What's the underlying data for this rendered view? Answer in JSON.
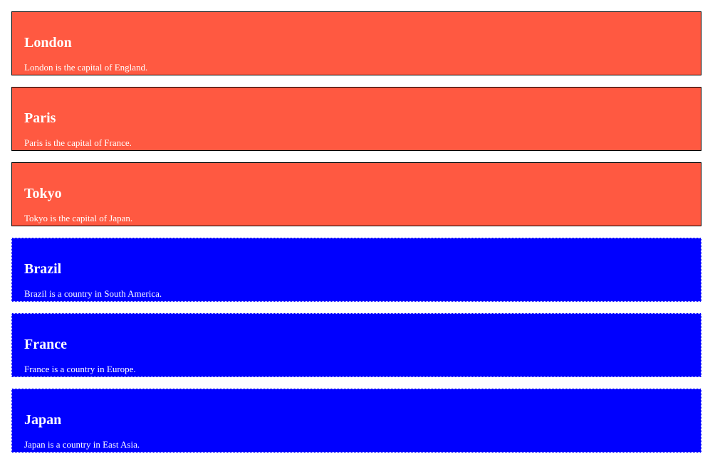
{
  "colors": {
    "city_bg": "#ff5941",
    "country_bg": "#0000ff",
    "text": "#ffffff"
  },
  "cards": [
    {
      "kind": "city",
      "title": "London",
      "description": "London is the capital of England."
    },
    {
      "kind": "city",
      "title": "Paris",
      "description": "Paris is the capital of France."
    },
    {
      "kind": "city",
      "title": "Tokyo",
      "description": "Tokyo is the capital of Japan."
    },
    {
      "kind": "country",
      "title": "Brazil",
      "description": "Brazil is a country in South America."
    },
    {
      "kind": "country",
      "title": "France",
      "description": "France is a country in Europe."
    },
    {
      "kind": "country",
      "title": "Japan",
      "description": "Japan is a country in East Asia."
    }
  ]
}
